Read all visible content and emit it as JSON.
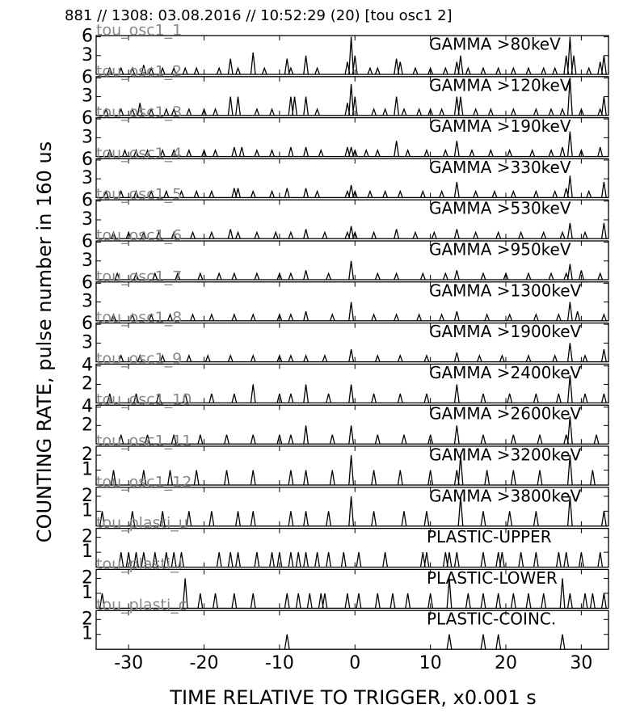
{
  "title": "881 // 1308:   03.08.2016 // 10:52:29 (20)  [tou osc1 2]",
  "xlabel": "TIME RELATIVE TO TRIGGER,   x0.001 s",
  "ylabel": "COUNTING RATE,   pulse number in 160 us",
  "chart_data": [
    {
      "type": "line",
      "name": "tou_osc1_1",
      "annotation": "GAMMA >80keV",
      "color": "#000000",
      "xlim": [
        -34.3,
        33.6
      ],
      "xticks": [
        -30,
        -20,
        -10,
        0,
        10,
        20,
        30
      ],
      "ylim": [
        0,
        6.2
      ],
      "yticks": [
        3,
        6
      ],
      "x": [
        -32.5,
        -31,
        -29.5,
        -28,
        -27,
        -25.5,
        -24,
        -22.5,
        -21,
        -18,
        -16.5,
        -15.5,
        -13.5,
        -12,
        -9,
        -8.5,
        -6.5,
        -5,
        -1,
        -0.5,
        0,
        2,
        3,
        5.5,
        6,
        8,
        10,
        12,
        13.5,
        14,
        15,
        17,
        19,
        21,
        23,
        25,
        26.5,
        28,
        28.5,
        29,
        31,
        32.5,
        33
      ],
      "values": [
        1,
        1,
        1,
        1.5,
        1,
        1,
        1,
        1,
        1,
        1,
        2.5,
        1,
        3.5,
        1,
        2.5,
        1,
        3,
        1,
        2,
        6,
        3,
        1,
        1,
        2.5,
        2,
        1,
        1,
        1,
        2,
        3,
        1,
        1,
        1,
        1,
        1,
        1,
        1,
        3,
        6,
        3,
        1,
        2,
        3
      ]
    },
    {
      "type": "line",
      "name": "tou_osc1_2",
      "annotation": "GAMMA >120keV",
      "color": "#000000",
      "xlim": [
        -34.3,
        33.6
      ],
      "xticks": [
        -30,
        -20,
        -10,
        0,
        10,
        20,
        30
      ],
      "ylim": [
        0,
        6.2
      ],
      "yticks": [
        3,
        6
      ],
      "x": [
        -33,
        -31,
        -29.5,
        -28.5,
        -27,
        -25,
        -24,
        -22,
        -20,
        -18.5,
        -16.5,
        -15.5,
        -13,
        -11,
        -8.5,
        -8,
        -6.5,
        -5,
        -1,
        -0.5,
        0,
        2.5,
        4,
        5.5,
        6.5,
        8.5,
        10,
        11.5,
        13.5,
        14,
        16,
        18,
        21,
        24,
        26,
        27.5,
        28.5,
        30,
        32.5,
        33
      ],
      "values": [
        1,
        1,
        1,
        2,
        1,
        1,
        1,
        1,
        1,
        1,
        3,
        3,
        1,
        1,
        3,
        3,
        3,
        1,
        2,
        5,
        3,
        1,
        1,
        3,
        1,
        1,
        1,
        1,
        3,
        3,
        1,
        1,
        1,
        1,
        1,
        1,
        6,
        1,
        1,
        3
      ]
    },
    {
      "type": "line",
      "name": "tou_osc1_3",
      "annotation": "GAMMA >190keV",
      "color": "#000000",
      "xlim": [
        -34.3,
        33.6
      ],
      "xticks": [
        -30,
        -20,
        -10,
        0,
        10,
        20,
        30
      ],
      "ylim": [
        0,
        6.2
      ],
      "yticks": [
        3,
        6
      ],
      "x": [
        -32.5,
        -30.5,
        -29,
        -27.5,
        -25.5,
        -24,
        -22,
        -20,
        -18.5,
        -16,
        -15,
        -13,
        -11,
        -8.5,
        -6.5,
        -4.5,
        -1,
        -0.5,
        0,
        1.5,
        3,
        5.5,
        7,
        9.5,
        12,
        13.5,
        15.5,
        18,
        20.5,
        23.5,
        26,
        27.5,
        28.5,
        30,
        32.5
      ],
      "values": [
        1,
        1,
        1,
        1,
        1,
        1,
        1,
        1,
        1,
        1.5,
        1.5,
        1,
        1,
        1.5,
        1.5,
        1,
        1.5,
        1.5,
        1,
        1,
        1,
        2.5,
        1,
        1,
        1,
        2.5,
        1,
        1,
        1,
        1,
        1,
        1.5,
        4,
        1,
        1.5
      ]
    },
    {
      "type": "line",
      "name": "tou_osc1_4",
      "annotation": "GAMMA >330keV",
      "color": "#000000",
      "xlim": [
        -34.3,
        33.6
      ],
      "xticks": [
        -30,
        -20,
        -10,
        0,
        10,
        20,
        30
      ],
      "ylim": [
        0,
        6.2
      ],
      "yticks": [
        3,
        6
      ],
      "x": [
        -33,
        -31,
        -29,
        -27,
        -25,
        -23,
        -21,
        -19,
        -16,
        -15.5,
        -13.5,
        -11,
        -9,
        -6.5,
        -5,
        -1,
        -0.5,
        0,
        2,
        4,
        6,
        9,
        11.5,
        13.5,
        16,
        18.5,
        21,
        24,
        26.5,
        28,
        28.5,
        31,
        33
      ],
      "values": [
        1,
        1,
        1,
        1,
        1,
        1,
        1,
        1,
        1.5,
        1.5,
        1,
        1,
        1.5,
        1.5,
        1,
        1,
        2,
        1,
        1,
        1,
        1,
        1,
        1,
        2.5,
        1,
        1,
        1,
        1,
        1,
        1.5,
        3.5,
        1,
        2.5
      ]
    },
    {
      "type": "line",
      "name": "tou_osc1_5",
      "annotation": "GAMMA >530keV",
      "color": "#000000",
      "xlim": [
        -34.3,
        33.6
      ],
      "xticks": [
        -30,
        -20,
        -10,
        0,
        10,
        20,
        30
      ],
      "ylim": [
        0,
        6.2
      ],
      "yticks": [
        3,
        6
      ],
      "x": [
        -32,
        -30,
        -28,
        -26,
        -24,
        -21.5,
        -19,
        -16.5,
        -15.5,
        -13,
        -10.5,
        -8.5,
        -6.5,
        -4,
        -1,
        -0.5,
        0,
        2.5,
        5.5,
        8,
        10.5,
        13.5,
        16,
        19,
        22,
        25,
        27.5,
        28.5,
        30.5,
        33
      ],
      "values": [
        1,
        1,
        1,
        1,
        1,
        1,
        1,
        1.5,
        1,
        1,
        1,
        1,
        1.5,
        1,
        1,
        2,
        1,
        1,
        1.5,
        1,
        1,
        1.5,
        1,
        1,
        1,
        1,
        1,
        2.5,
        1,
        2.5
      ]
    },
    {
      "type": "line",
      "name": "tou_osc1_6",
      "annotation": "GAMMA >950keV",
      "color": "#000000",
      "xlim": [
        -34.3,
        33.6
      ],
      "xticks": [
        -30,
        -20,
        -10,
        0,
        10,
        20,
        30
      ],
      "ylim": [
        0,
        6.2
      ],
      "yticks": [
        3,
        6
      ],
      "x": [
        -31.5,
        -29,
        -26.5,
        -23.5,
        -20.5,
        -18,
        -16,
        -13,
        -10,
        -8.5,
        -6.5,
        -3.5,
        -0.5,
        3,
        5.5,
        9,
        12,
        13.5,
        17,
        20,
        23,
        26,
        28,
        28.5,
        30,
        32.5
      ],
      "values": [
        1,
        1,
        1,
        1,
        1,
        1,
        1,
        1,
        1,
        1,
        1.5,
        1,
        3,
        1,
        1,
        1,
        1,
        1.5,
        1,
        1,
        1,
        1,
        1,
        2.5,
        1.5,
        1
      ]
    },
    {
      "type": "line",
      "name": "tou_osc1_7",
      "annotation": "GAMMA >1300keV",
      "color": "#000000",
      "xlim": [
        -34.3,
        33.6
      ],
      "xticks": [
        -30,
        -20,
        -10,
        0,
        10,
        20,
        30
      ],
      "ylim": [
        0,
        6.2
      ],
      "yticks": [
        3,
        6
      ],
      "x": [
        -32,
        -29.5,
        -27,
        -24.5,
        -21.5,
        -19,
        -16,
        -13.5,
        -10,
        -8.5,
        -6.5,
        -3,
        -0.5,
        2.5,
        5.5,
        8.5,
        11.5,
        13.5,
        17.5,
        20.5,
        24,
        27,
        28.5,
        29.5,
        33
      ],
      "values": [
        1,
        1,
        1,
        1,
        1,
        1,
        1,
        1,
        1,
        1,
        1.5,
        1,
        3,
        1,
        1,
        1,
        1,
        1.5,
        1,
        1,
        1,
        1,
        3,
        1.5,
        1
      ]
    },
    {
      "type": "line",
      "name": "tou_osc1_8",
      "annotation": "GAMMA >1900keV",
      "color": "#000000",
      "xlim": [
        -34.3,
        33.6
      ],
      "xticks": [
        -30,
        -20,
        -10,
        0,
        10,
        20,
        30
      ],
      "ylim": [
        0,
        6.2
      ],
      "yticks": [
        3,
        6
      ],
      "x": [
        -31,
        -28.5,
        -25.5,
        -22,
        -19.5,
        -16.5,
        -13.5,
        -10,
        -8.5,
        -6.5,
        -4,
        -0.5,
        3,
        6,
        9.5,
        13.5,
        16.5,
        19.5,
        23,
        26.5,
        28.5,
        30.5,
        33
      ],
      "values": [
        1,
        1,
        1,
        1,
        1,
        1,
        1,
        1,
        1,
        1,
        1,
        2,
        1,
        1,
        1,
        1.5,
        1,
        1,
        1,
        1,
        3,
        1,
        2
      ]
    },
    {
      "type": "line",
      "name": "tou_osc1_9",
      "annotation": "GAMMA >2400keV",
      "color": "#000000",
      "xlim": [
        -34.3,
        33.6
      ],
      "xticks": [
        -30,
        -20,
        -10,
        0,
        10,
        20,
        30
      ],
      "ylim": [
        0,
        4.2
      ],
      "yticks": [
        2,
        4
      ],
      "x": [
        -32.5,
        -29,
        -26,
        -22.5,
        -19,
        -16,
        -13.5,
        -10,
        -8.5,
        -6.5,
        -3.5,
        -0.5,
        2.5,
        6,
        9.5,
        13.5,
        17,
        20.5,
        24,
        27,
        28.5,
        30.5,
        33
      ],
      "values": [
        1,
        1,
        1,
        1,
        1,
        1,
        2,
        1,
        1,
        2,
        1,
        2,
        1,
        1,
        1,
        2,
        1,
        1,
        1,
        1,
        3,
        1,
        1
      ]
    },
    {
      "type": "line",
      "name": "tou_osc1_10",
      "annotation": "GAMMA >2600keV",
      "color": "#000000",
      "xlim": [
        -34.3,
        33.6
      ],
      "xticks": [
        -30,
        -20,
        -10,
        0,
        10,
        20,
        30
      ],
      "ylim": [
        0,
        4.2
      ],
      "yticks": [
        2,
        4
      ],
      "x": [
        -31,
        -27.5,
        -24,
        -20.5,
        -17,
        -13.5,
        -10,
        -8.5,
        -6.5,
        -3,
        -0.5,
        3,
        6.5,
        10,
        13.5,
        17,
        21,
        24.5,
        28,
        28.5,
        32
      ],
      "values": [
        1,
        1,
        1,
        1,
        1,
        1,
        1,
        1,
        2,
        1,
        2,
        1,
        1,
        1,
        2,
        1,
        1,
        1,
        1,
        3,
        1
      ]
    },
    {
      "type": "line",
      "name": "tou_osc1_11",
      "annotation": "GAMMA >3200keV",
      "color": "#000000",
      "xlim": [
        -34.3,
        33.6
      ],
      "xticks": [
        -30,
        -20,
        -10,
        0,
        10,
        20,
        30
      ],
      "ylim": [
        0,
        2.6
      ],
      "yticks": [
        1,
        2
      ],
      "x": [
        -32,
        -28,
        -24.5,
        -21,
        -17,
        -13.5,
        -8.5,
        -6.5,
        -3,
        -0.5,
        2.5,
        6,
        10,
        13.5,
        14,
        17.5,
        21,
        24.5,
        28.5,
        31.5
      ],
      "values": [
        1,
        1,
        1,
        1,
        1,
        1,
        1,
        1,
        1,
        2,
        1,
        1,
        1,
        1,
        2,
        1,
        1,
        1,
        2,
        1
      ]
    },
    {
      "type": "line",
      "name": "tou_osc1_12",
      "annotation": "GAMMA >3800keV",
      "color": "#000000",
      "xlim": [
        -34.3,
        33.6
      ],
      "xticks": [
        -30,
        -20,
        -10,
        0,
        10,
        20,
        30
      ],
      "ylim": [
        0,
        2.6
      ],
      "yticks": [
        1,
        2
      ],
      "x": [
        -33.5,
        -29.5,
        -25.5,
        -22,
        -19,
        -15.5,
        -13.5,
        -8.5,
        -6.5,
        -3.5,
        -0.5,
        2.5,
        6.5,
        9.5,
        14,
        17,
        20.5,
        24,
        28.5,
        33
      ],
      "values": [
        1,
        1,
        1,
        1,
        1,
        1,
        1,
        1,
        1,
        1,
        2,
        1,
        1,
        1,
        2,
        1,
        1,
        1,
        2,
        1
      ]
    },
    {
      "type": "line",
      "name": "tou_plasti_u",
      "annotation": "PLASTIC-UPPER",
      "color": "#000000",
      "xlim": [
        -34.3,
        33.6
      ],
      "xticks": [
        -30,
        -20,
        -10,
        0,
        10,
        20,
        30
      ],
      "ylim": [
        0,
        2.6
      ],
      "yticks": [
        1,
        2
      ],
      "x": [
        -31,
        -30,
        -29,
        -28,
        -26.5,
        -25,
        -24,
        -23,
        -18,
        -16.5,
        -15.5,
        -13,
        -11,
        -10,
        -8.5,
        -7.5,
        -6.5,
        -5,
        -3.5,
        -1.5,
        0.5,
        4,
        9,
        9.5,
        12,
        12.5,
        13.5,
        17,
        19,
        19.5,
        22,
        24,
        27,
        28,
        30,
        32.5
      ],
      "values": [
        1,
        1,
        1,
        1,
        1,
        1,
        1,
        1,
        1,
        1,
        1,
        1,
        1,
        1,
        1,
        1,
        1,
        1,
        1,
        1,
        1,
        1,
        1,
        1,
        1,
        1,
        1,
        1,
        1,
        1,
        1,
        1,
        1,
        1,
        1,
        1
      ]
    },
    {
      "type": "line",
      "name": "tou_plasti_l",
      "annotation": "PLASTIC-LOWER",
      "color": "#000000",
      "xlim": [
        -34.3,
        33.6
      ],
      "xticks": [
        -30,
        -20,
        -10,
        0,
        10,
        20,
        30
      ],
      "ylim": [
        0,
        2.6
      ],
      "yticks": [
        1,
        2
      ],
      "x": [
        -33.5,
        -22.5,
        -20.5,
        -18.5,
        -16,
        -13.5,
        -9,
        -7.5,
        -6,
        -4.5,
        -4,
        -1,
        0.5,
        3,
        5,
        7,
        10,
        12.5,
        15,
        17,
        19,
        21,
        23,
        25,
        27.5,
        28.5,
        30.5,
        31.5,
        33
      ],
      "values": [
        1,
        2,
        1,
        1,
        1,
        1,
        1,
        1,
        1,
        1,
        1,
        1,
        1,
        1,
        1,
        1,
        1,
        2,
        1,
        1,
        1,
        1,
        1,
        1,
        2,
        1,
        1,
        1,
        1
      ]
    },
    {
      "type": "line",
      "name": "tou_plasti_c",
      "annotation": "PLASTIC-COINC.",
      "color": "#000000",
      "xlim": [
        -34.3,
        33.6
      ],
      "xticks": [
        -30,
        -20,
        -10,
        0,
        10,
        20,
        30
      ],
      "ylim": [
        0,
        2.6
      ],
      "yticks": [
        1,
        2
      ],
      "x": [
        -9,
        12.5,
        17,
        19,
        27.5
      ],
      "values": [
        1,
        1,
        1,
        1,
        1
      ]
    }
  ]
}
